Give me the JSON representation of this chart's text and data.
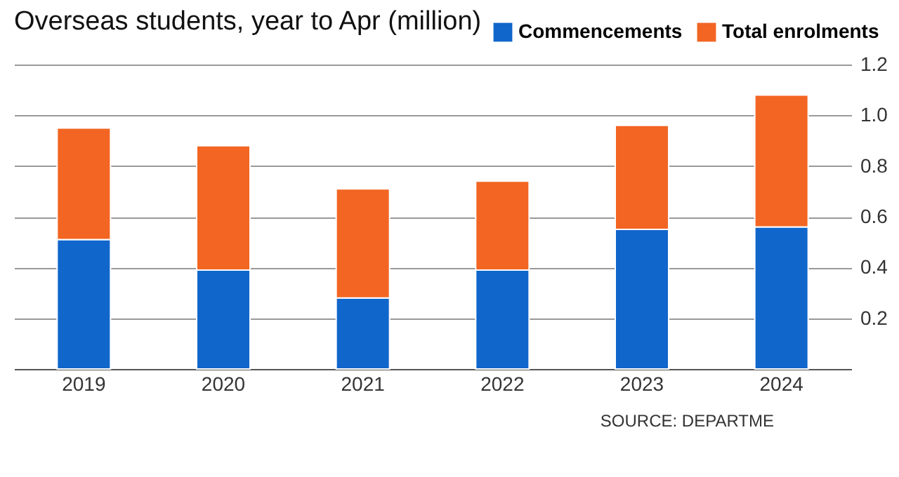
{
  "chart_data": {
    "type": "bar",
    "title": "Overseas students, year to Apr (million)",
    "stacked": true,
    "categories": [
      "2019",
      "2020",
      "2021",
      "2022",
      "2023",
      "2024"
    ],
    "series": [
      {
        "name": "Commencements",
        "color": "#1166cc",
        "values": [
          0.51,
          0.39,
          0.28,
          0.39,
          0.55,
          0.56
        ]
      },
      {
        "name": "Total enrolments",
        "color": "#f26522",
        "values": [
          0.44,
          0.49,
          0.43,
          0.35,
          0.41,
          0.52
        ]
      }
    ],
    "ylim": [
      0,
      1.2
    ],
    "yticks": [
      0.2,
      0.4,
      0.6,
      0.8,
      {
        "value": 1.0,
        "label": "1.0"
      },
      1.2
    ],
    "grid": "y",
    "legend": "top right",
    "annotations": [
      "SOURCE: DEPARTME"
    ]
  }
}
